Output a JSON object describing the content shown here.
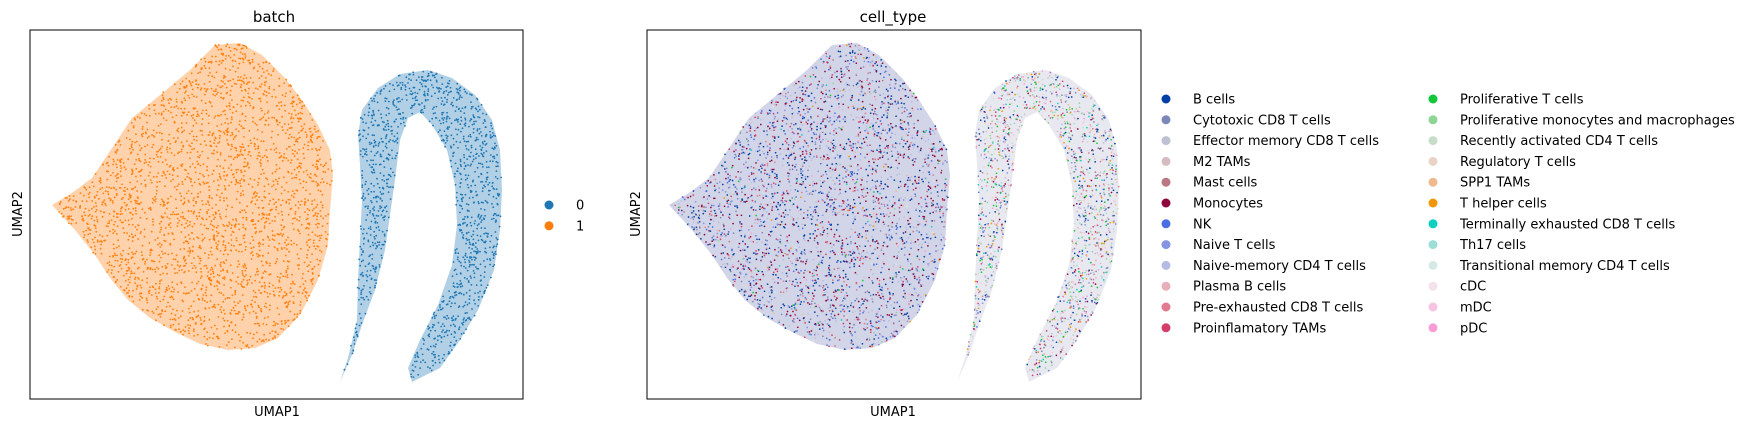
{
  "chart_data": [
    {
      "type": "scatter",
      "title": "batch",
      "xlabel": "UMAP1",
      "ylabel": "UMAP2",
      "grid": false,
      "legend_position": "right",
      "point_size": "very small",
      "series": [
        {
          "name": "0",
          "color": "#1f77b4",
          "cluster": "right hook-shaped cluster"
        },
        {
          "name": "1",
          "color": "#ff7f0e",
          "cluster": "left rounded cluster"
        }
      ]
    },
    {
      "type": "scatter",
      "title": "cell_type",
      "xlabel": "UMAP1",
      "ylabel": "UMAP2",
      "grid": false,
      "legend_position": "right, two columns",
      "point_size": "very small",
      "series": [
        {
          "name": "B cells",
          "color": "#023fa5"
        },
        {
          "name": "Cytotoxic CD8 T cells",
          "color": "#7d87b9"
        },
        {
          "name": "Effector memory CD8 T cells",
          "color": "#bec1d4"
        },
        {
          "name": "M2 TAMs",
          "color": "#d6bcc0"
        },
        {
          "name": "Mast cells",
          "color": "#bb7784"
        },
        {
          "name": "Monocytes",
          "color": "#8e063b"
        },
        {
          "name": "NK",
          "color": "#4a6fe3"
        },
        {
          "name": "Naive T cells",
          "color": "#8595e1"
        },
        {
          "name": "Naive-memory CD4 T cells",
          "color": "#b5bbe3"
        },
        {
          "name": "Plasma B cells",
          "color": "#e6afb9"
        },
        {
          "name": "Pre-exhausted CD8 T cells",
          "color": "#e07b91"
        },
        {
          "name": "Proinflamatory TAMs",
          "color": "#d33f6a"
        },
        {
          "name": "Proliferative T cells",
          "color": "#11c638"
        },
        {
          "name": "Proliferative monocytes and macrophages",
          "color": "#8dd593"
        },
        {
          "name": "Recently activated CD4 T cells",
          "color": "#c6dec7"
        },
        {
          "name": "Regulatory T cells",
          "color": "#ead3c6"
        },
        {
          "name": "SPP1 TAMs",
          "color": "#f0b98d"
        },
        {
          "name": "T helper cells",
          "color": "#ef9708"
        },
        {
          "name": "Terminally exhausted CD8 T cells",
          "color": "#0fcfc0"
        },
        {
          "name": "Th17 cells",
          "color": "#9cded6"
        },
        {
          "name": "Transitional memory CD4 T cells",
          "color": "#d5eae7"
        },
        {
          "name": "cDC",
          "color": "#f3e1eb"
        },
        {
          "name": "mDC",
          "color": "#f6c4e1"
        },
        {
          "name": "pDC",
          "color": "#f79cd4"
        }
      ]
    }
  ]
}
